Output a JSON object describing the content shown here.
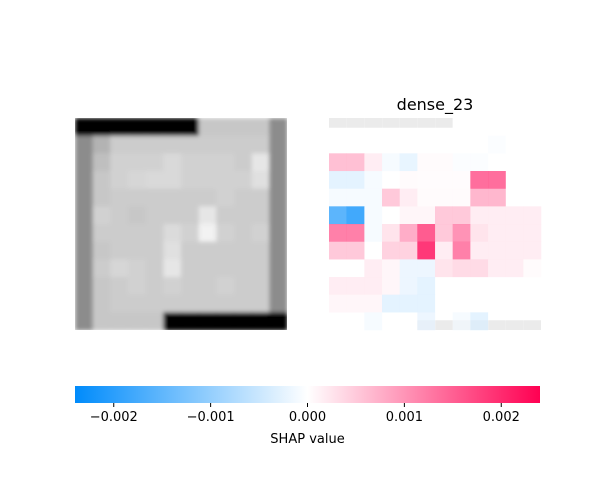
{
  "chart_data": [
    {
      "type": "heatmap",
      "panel": "input-image",
      "title": "",
      "rows": 12,
      "cols": 12,
      "colormap": "grayscale",
      "pixels": [
        [
          0.0,
          0.0,
          0.0,
          0.0,
          0.0,
          0.0,
          0.0,
          0.78,
          0.78,
          0.78,
          0.78,
          0.55
        ],
        [
          0.55,
          0.7,
          0.8,
          0.8,
          0.8,
          0.8,
          0.8,
          0.8,
          0.8,
          0.8,
          0.8,
          0.55
        ],
        [
          0.55,
          0.75,
          0.82,
          0.82,
          0.82,
          0.85,
          0.82,
          0.82,
          0.82,
          0.8,
          0.9,
          0.55
        ],
        [
          0.55,
          0.78,
          0.82,
          0.84,
          0.85,
          0.85,
          0.82,
          0.82,
          0.82,
          0.82,
          0.88,
          0.55
        ],
        [
          0.55,
          0.78,
          0.8,
          0.8,
          0.8,
          0.8,
          0.8,
          0.8,
          0.82,
          0.8,
          0.8,
          0.55
        ],
        [
          0.55,
          0.82,
          0.8,
          0.78,
          0.8,
          0.8,
          0.8,
          0.9,
          0.8,
          0.8,
          0.8,
          0.55
        ],
        [
          0.55,
          0.8,
          0.8,
          0.8,
          0.8,
          0.86,
          0.82,
          0.95,
          0.82,
          0.8,
          0.82,
          0.55
        ],
        [
          0.55,
          0.78,
          0.8,
          0.8,
          0.8,
          0.88,
          0.8,
          0.8,
          0.8,
          0.8,
          0.8,
          0.55
        ],
        [
          0.55,
          0.8,
          0.84,
          0.82,
          0.8,
          0.9,
          0.8,
          0.8,
          0.8,
          0.8,
          0.8,
          0.55
        ],
        [
          0.55,
          0.78,
          0.8,
          0.82,
          0.8,
          0.82,
          0.8,
          0.8,
          0.82,
          0.8,
          0.8,
          0.55
        ],
        [
          0.55,
          0.78,
          0.8,
          0.8,
          0.8,
          0.8,
          0.8,
          0.8,
          0.8,
          0.8,
          0.8,
          0.55
        ],
        [
          0.55,
          0.78,
          0.78,
          0.78,
          0.78,
          0.0,
          0.0,
          0.0,
          0.0,
          0.0,
          0.0,
          0.0
        ]
      ]
    },
    {
      "type": "heatmap",
      "panel": "shap-values",
      "title": "dense_23",
      "rows": 12,
      "cols": 12,
      "colormap": "shap-red-blue",
      "vmin": -0.0024,
      "vmax": 0.0024,
      "background_gray": "#d3d3d3",
      "overlay_opacity": 0.85,
      "values": [
        [
          0,
          0,
          0,
          0,
          0,
          0,
          0,
          0,
          0,
          0,
          0,
          0
        ],
        [
          0,
          0,
          0,
          0,
          0,
          0,
          0,
          0,
          0,
          -5e-05,
          0,
          0
        ],
        [
          0.0007,
          0.0007,
          0.0002,
          -0.0001,
          -0.00025,
          5e-05,
          5e-05,
          -5e-05,
          -5e-05,
          0,
          0,
          0
        ],
        [
          -0.0003,
          -0.0003,
          -0.0001,
          0,
          5e-05,
          3e-05,
          3e-05,
          3e-05,
          0.0016,
          0.0016,
          0,
          0
        ],
        [
          -0.0001,
          -0.0001,
          -0.0001,
          0.0006,
          0.0002,
          5e-05,
          5e-05,
          5e-05,
          0.0008,
          0.0008,
          0,
          0
        ],
        [
          -0.0018,
          -0.0021,
          -0.0001,
          0,
          0.0001,
          0.0001,
          0.0006,
          0.0006,
          0.0002,
          0.0002,
          0.0002,
          0.0002
        ],
        [
          0.0014,
          0.0014,
          -0.0001,
          0.0003,
          0.0009,
          0.0018,
          0.0006,
          0.0012,
          0.0003,
          0.0002,
          0.0002,
          0.0002
        ],
        [
          0.0006,
          0.0006,
          0,
          0.0005,
          0.0005,
          0.0022,
          0.0002,
          0.0014,
          0.0002,
          0.0002,
          0.0002,
          0.0002
        ],
        [
          0,
          0,
          0.0002,
          0.0001,
          -0.0002,
          -0.0002,
          0.0003,
          0.0004,
          0.0004,
          0.0002,
          0.0002,
          5e-05
        ],
        [
          0.0002,
          0.0002,
          0.0002,
          0.0001,
          -0.0002,
          -0.0003,
          0,
          0,
          0,
          0,
          0,
          0
        ],
        [
          0.0001,
          0.0001,
          0.0001,
          -0.0003,
          -0.0003,
          -0.0003,
          0,
          0,
          0,
          0,
          0,
          0
        ],
        [
          0,
          0,
          -0.0001,
          0,
          0,
          -0.0002,
          0,
          -0.0001,
          -0.0003,
          0,
          0,
          0
        ]
      ]
    },
    {
      "type": "colorbar",
      "xlabel": "SHAP value",
      "range": [
        -0.0024,
        0.0024
      ],
      "ticks": [
        -0.002,
        -0.001,
        0.0,
        0.001,
        0.002
      ],
      "tick_labels": [
        "−0.002",
        "−0.001",
        "0.000",
        "0.001",
        "0.002"
      ],
      "colors": [
        "#008bfb",
        "#ffffff",
        "#ff0052"
      ]
    }
  ]
}
